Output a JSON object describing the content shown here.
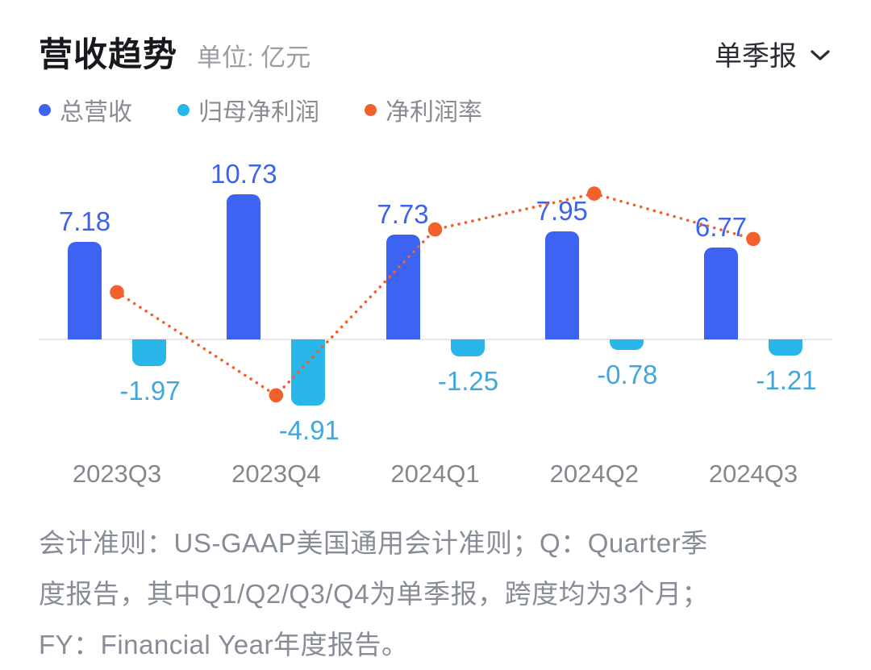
{
  "header": {
    "title": "营收趋势",
    "unit_label": "单位: 亿元",
    "period_label": "单季报",
    "chevron_icon": "chevron-down"
  },
  "legend": [
    {
      "label": "总营收",
      "color": "#3D63F2"
    },
    {
      "label": "归母净利润",
      "color": "#29B6E8"
    },
    {
      "label": "净利润率",
      "color": "#F2602C"
    }
  ],
  "chart_data": {
    "type": "bar",
    "subtype": "bar+dotted-line",
    "unit": "亿元",
    "categories": [
      "2023Q3",
      "2023Q4",
      "2024Q1",
      "2024Q2",
      "2024Q3"
    ],
    "series": [
      {
        "name": "总营收",
        "type": "bar",
        "color": "#3D63F2",
        "label_color": "#3D63E9",
        "values": [
          7.18,
          10.73,
          7.73,
          7.95,
          6.77
        ]
      },
      {
        "name": "归母净利润",
        "type": "bar",
        "color": "#29B6E8",
        "label_color": "#41A8DC",
        "values": [
          -1.97,
          -4.91,
          -1.25,
          -0.78,
          -1.21
        ]
      },
      {
        "name": "净利润率",
        "type": "line",
        "line_style": "dotted",
        "color": "#F2602C",
        "values_pct_estimated": [
          -27.4,
          -45.8,
          -16.2,
          -9.8,
          -17.9
        ],
        "data_labels": false
      }
    ],
    "grid": false,
    "y_axis_visible": false,
    "zero_baseline_visible": true,
    "legend_position": "top-left"
  },
  "footer": {
    "lines": [
      "会计准则：US-GAAP美国通用会计准则；Q：Quarter季",
      "度报告，其中Q1/Q2/Q3/Q4为单季报，跨度均为3个月；",
      "FY：Financial Year年度报告。"
    ]
  }
}
